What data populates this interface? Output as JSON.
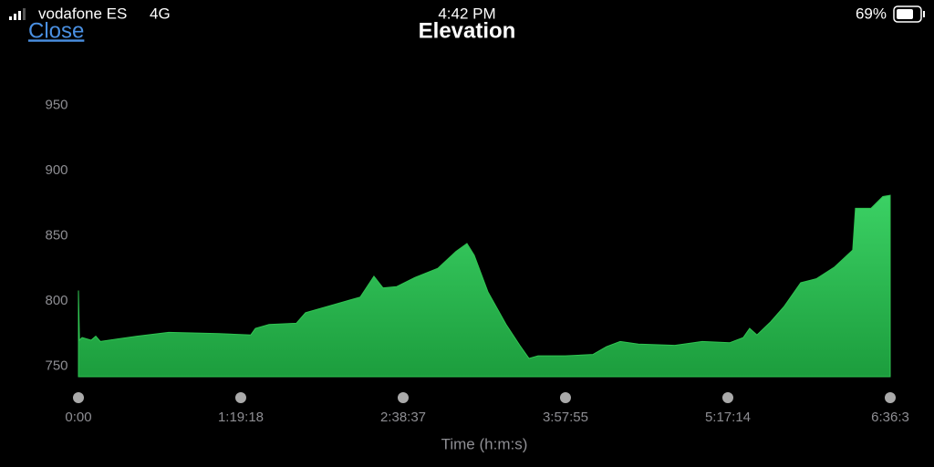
{
  "status_bar": {
    "carrier": "vodafone ES",
    "network": "4G",
    "time": "4:42 PM",
    "battery": "69%"
  },
  "header": {
    "close": "Close"
  },
  "chart_data": {
    "type": "area",
    "title": "Elevation",
    "x_label": "Time (h:m:s)",
    "color": "#30c552",
    "x": [
      0,
      30,
      107,
      374,
      508,
      642,
      1711,
      2646,
      4116,
      5052,
      5186,
      5587,
      6388,
      6656,
      7591,
      8260,
      8661,
      8928,
      9329,
      9863,
      10532,
      11066,
      11387,
      11601,
      12002,
      12536,
      12937,
      13205,
      13472,
      14274,
      15076,
      15477,
      15878,
      16412,
      17481,
      18283,
      19085,
      19486,
      19673,
      19887,
      20288,
      20689,
      21170,
      21625,
      22160,
      22694,
      22774,
      23229,
      23576,
      23793
    ],
    "values": [
      808,
      770,
      772,
      770,
      773,
      769,
      773,
      776,
      775,
      774,
      779,
      782,
      783,
      791,
      798,
      803,
      819,
      810,
      811,
      818,
      825,
      838,
      844,
      835,
      807,
      782,
      766,
      756,
      758,
      758,
      759,
      765,
      769,
      767,
      766,
      769,
      768,
      772,
      779,
      774,
      784,
      796,
      814,
      817,
      826,
      839,
      871,
      871,
      880,
      881
    ],
    "xlim": [
      0,
      23793
    ],
    "xticks": [
      {
        "value": 0,
        "label": "0:00"
      },
      {
        "value": 4758,
        "label": "1:19:18"
      },
      {
        "value": 9517,
        "label": "2:38:37"
      },
      {
        "value": 14275,
        "label": "3:57:55"
      },
      {
        "value": 19034,
        "label": "5:17:14"
      },
      {
        "value": 23793,
        "label": "6:36:3"
      }
    ],
    "ylim": [
      742,
      960
    ],
    "yticks": [
      750,
      800,
      850,
      900,
      950
    ]
  }
}
